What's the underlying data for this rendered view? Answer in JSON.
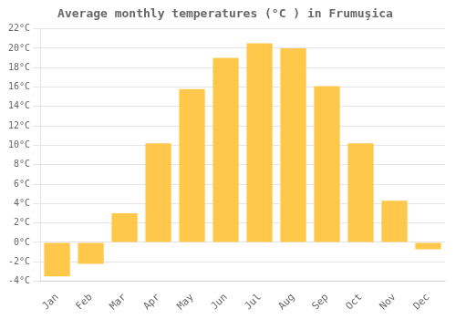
{
  "chart_data": {
    "type": "bar",
    "title": "Average monthly temperatures (°C ) in Frumuşica",
    "categories": [
      "Jan",
      "Feb",
      "Mar",
      "Apr",
      "May",
      "Jun",
      "Jul",
      "Aug",
      "Sep",
      "Oct",
      "Nov",
      "Dec"
    ],
    "values": [
      -3.5,
      -2.2,
      3.0,
      10.2,
      15.8,
      19.0,
      20.5,
      20.0,
      16.1,
      10.2,
      4.3,
      -0.7
    ],
    "color": "#FFC84A",
    "ylim": [
      -4,
      22
    ],
    "yticks": [
      {
        "value": -4,
        "label": "-4°C"
      },
      {
        "value": -2,
        "label": "-2°C"
      },
      {
        "value": 0,
        "label": "0°C"
      },
      {
        "value": 2,
        "label": "2°C"
      },
      {
        "value": 4,
        "label": "4°C"
      },
      {
        "value": 6,
        "label": "6°C"
      },
      {
        "value": 8,
        "label": "8°C"
      },
      {
        "value": 10,
        "label": "10°C"
      },
      {
        "value": 12,
        "label": "12°C"
      },
      {
        "value": 14,
        "label": "14°C"
      },
      {
        "value": 16,
        "label": "16°C"
      },
      {
        "value": 18,
        "label": "18°C"
      },
      {
        "value": 20,
        "label": "20°C"
      },
      {
        "value": 22,
        "label": "22°C"
      }
    ],
    "grid": true
  }
}
